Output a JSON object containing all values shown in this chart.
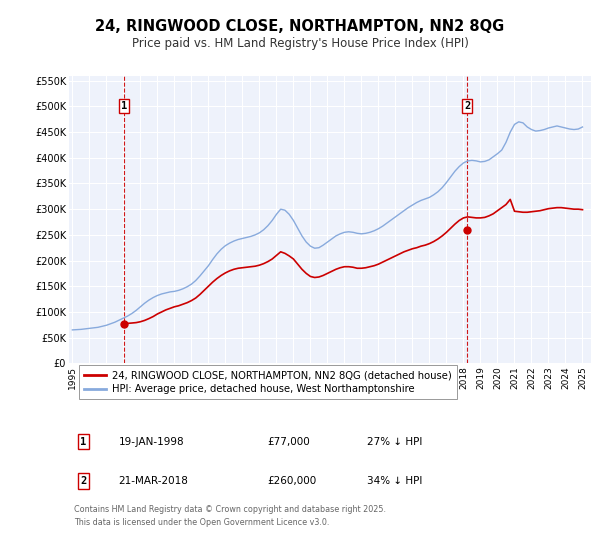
{
  "title": "24, RINGWOOD CLOSE, NORTHAMPTON, NN2 8QG",
  "subtitle": "Price paid vs. HM Land Registry's House Price Index (HPI)",
  "xlim": [
    1994.8,
    2025.5
  ],
  "ylim": [
    0,
    560000
  ],
  "yticks": [
    0,
    50000,
    100000,
    150000,
    200000,
    250000,
    300000,
    350000,
    400000,
    450000,
    500000,
    550000
  ],
  "ytick_labels": [
    "£0",
    "£50K",
    "£100K",
    "£150K",
    "£200K",
    "£250K",
    "£300K",
    "£350K",
    "£400K",
    "£450K",
    "£500K",
    "£550K"
  ],
  "xticks": [
    1995,
    1996,
    1997,
    1998,
    1999,
    2000,
    2001,
    2002,
    2003,
    2004,
    2005,
    2006,
    2007,
    2008,
    2009,
    2010,
    2011,
    2012,
    2013,
    2014,
    2015,
    2016,
    2017,
    2018,
    2019,
    2020,
    2021,
    2022,
    2023,
    2024,
    2025
  ],
  "legend_line1": "24, RINGWOOD CLOSE, NORTHAMPTON, NN2 8QG (detached house)",
  "legend_line2": "HPI: Average price, detached house, West Northamptonshire",
  "line1_color": "#cc0000",
  "line2_color": "#88aadd",
  "vline_color": "#cc0000",
  "sale1_x": 1998.05,
  "sale1_y": 77000,
  "sale2_x": 2018.21,
  "sale2_y": 260000,
  "table_row1": [
    "1",
    "19-JAN-1998",
    "£77,000",
    "27% ↓ HPI"
  ],
  "table_row2": [
    "2",
    "21-MAR-2018",
    "£260,000",
    "34% ↓ HPI"
  ],
  "footnote": "Contains HM Land Registry data © Crown copyright and database right 2025.\nThis data is licensed under the Open Government Licence v3.0.",
  "background_color": "#ffffff",
  "plot_bg_color": "#eef2fb",
  "grid_color": "#ffffff",
  "hpi_data_x": [
    1995.0,
    1995.25,
    1995.5,
    1995.75,
    1996.0,
    1996.25,
    1996.5,
    1996.75,
    1997.0,
    1997.25,
    1997.5,
    1997.75,
    1998.0,
    1998.25,
    1998.5,
    1998.75,
    1999.0,
    1999.25,
    1999.5,
    1999.75,
    2000.0,
    2000.25,
    2000.5,
    2000.75,
    2001.0,
    2001.25,
    2001.5,
    2001.75,
    2002.0,
    2002.25,
    2002.5,
    2002.75,
    2003.0,
    2003.25,
    2003.5,
    2003.75,
    2004.0,
    2004.25,
    2004.5,
    2004.75,
    2005.0,
    2005.25,
    2005.5,
    2005.75,
    2006.0,
    2006.25,
    2006.5,
    2006.75,
    2007.0,
    2007.25,
    2007.5,
    2007.75,
    2008.0,
    2008.25,
    2008.5,
    2008.75,
    2009.0,
    2009.25,
    2009.5,
    2009.75,
    2010.0,
    2010.25,
    2010.5,
    2010.75,
    2011.0,
    2011.25,
    2011.5,
    2011.75,
    2012.0,
    2012.25,
    2012.5,
    2012.75,
    2013.0,
    2013.25,
    2013.5,
    2013.75,
    2014.0,
    2014.25,
    2014.5,
    2014.75,
    2015.0,
    2015.25,
    2015.5,
    2015.75,
    2016.0,
    2016.25,
    2016.5,
    2016.75,
    2017.0,
    2017.25,
    2017.5,
    2017.75,
    2018.0,
    2018.25,
    2018.5,
    2018.75,
    2019.0,
    2019.25,
    2019.5,
    2019.75,
    2020.0,
    2020.25,
    2020.5,
    2020.75,
    2021.0,
    2021.25,
    2021.5,
    2021.75,
    2022.0,
    2022.25,
    2022.5,
    2022.75,
    2023.0,
    2023.25,
    2023.5,
    2023.75,
    2024.0,
    2024.25,
    2024.5,
    2024.75,
    2025.0
  ],
  "hpi_data_y": [
    65000,
    65500,
    66000,
    67000,
    68000,
    69000,
    70000,
    72000,
    74000,
    77000,
    80000,
    84000,
    88000,
    92000,
    97000,
    103000,
    110000,
    117000,
    123000,
    128000,
    132000,
    135000,
    137000,
    139000,
    140000,
    142000,
    145000,
    149000,
    154000,
    161000,
    170000,
    180000,
    190000,
    202000,
    213000,
    222000,
    229000,
    234000,
    238000,
    241000,
    243000,
    245000,
    247000,
    250000,
    254000,
    260000,
    268000,
    278000,
    290000,
    300000,
    298000,
    290000,
    278000,
    263000,
    248000,
    236000,
    228000,
    224000,
    225000,
    230000,
    236000,
    242000,
    248000,
    252000,
    255000,
    256000,
    255000,
    253000,
    252000,
    253000,
    255000,
    258000,
    262000,
    267000,
    273000,
    279000,
    285000,
    291000,
    297000,
    303000,
    308000,
    313000,
    317000,
    320000,
    323000,
    328000,
    334000,
    342000,
    352000,
    363000,
    374000,
    383000,
    390000,
    394000,
    395000,
    394000,
    392000,
    393000,
    396000,
    402000,
    408000,
    415000,
    430000,
    450000,
    465000,
    470000,
    468000,
    460000,
    455000,
    452000,
    453000,
    455000,
    458000,
    460000,
    462000,
    460000,
    458000,
    456000,
    455000,
    456000,
    460000
  ],
  "price_data_x": [
    1995.0,
    1995.25,
    1995.5,
    1995.75,
    1996.0,
    1996.25,
    1996.5,
    1996.75,
    1997.0,
    1997.25,
    1997.5,
    1997.75,
    1998.0,
    1998.25,
    1998.5,
    1998.75,
    1999.0,
    1999.25,
    1999.5,
    1999.75,
    2000.0,
    2000.25,
    2000.5,
    2000.75,
    2001.0,
    2001.25,
    2001.5,
    2001.75,
    2002.0,
    2002.25,
    2002.5,
    2002.75,
    2003.0,
    2003.25,
    2003.5,
    2003.75,
    2004.0,
    2004.25,
    2004.5,
    2004.75,
    2005.0,
    2005.25,
    2005.5,
    2005.75,
    2006.0,
    2006.25,
    2006.5,
    2006.75,
    2007.0,
    2007.25,
    2007.5,
    2007.75,
    2008.0,
    2008.25,
    2008.5,
    2008.75,
    2009.0,
    2009.25,
    2009.5,
    2009.75,
    2010.0,
    2010.25,
    2010.5,
    2010.75,
    2011.0,
    2011.25,
    2011.5,
    2011.75,
    2012.0,
    2012.25,
    2012.5,
    2012.75,
    2013.0,
    2013.25,
    2013.5,
    2013.75,
    2014.0,
    2014.25,
    2014.5,
    2014.75,
    2015.0,
    2015.25,
    2015.5,
    2015.75,
    2016.0,
    2016.25,
    2016.5,
    2016.75,
    2017.0,
    2017.25,
    2017.5,
    2017.75,
    2018.0,
    2018.25,
    2018.5,
    2018.75,
    2019.0,
    2019.25,
    2019.5,
    2019.75,
    2020.0,
    2020.25,
    2020.5,
    2020.75,
    2021.0,
    2021.25,
    2021.5,
    2021.75,
    2022.0,
    2022.25,
    2022.5,
    2022.75,
    2023.0,
    2023.25,
    2023.5,
    2023.75,
    2024.0,
    2024.25,
    2024.5,
    2024.75,
    2025.0
  ],
  "price_data_y": [
    null,
    null,
    null,
    null,
    null,
    null,
    null,
    null,
    null,
    null,
    null,
    null,
    77000,
    77700,
    78400,
    79200,
    80900,
    83500,
    87000,
    91000,
    96000,
    100000,
    104000,
    107000,
    110000,
    112000,
    115000,
    118000,
    122000,
    127000,
    134000,
    142000,
    150000,
    158000,
    165000,
    171000,
    176000,
    180000,
    183000,
    185000,
    186000,
    187000,
    188000,
    189000,
    191000,
    194000,
    198000,
    203000,
    210000,
    217000,
    214000,
    209000,
    203000,
    193000,
    183000,
    175000,
    169000,
    167000,
    168000,
    171000,
    175000,
    179000,
    183000,
    186000,
    188000,
    188000,
    187000,
    185000,
    185000,
    186000,
    188000,
    190000,
    193000,
    197000,
    201000,
    205000,
    209000,
    213000,
    217000,
    220000,
    223000,
    225000,
    228000,
    230000,
    233000,
    237000,
    242000,
    248000,
    255000,
    263000,
    271000,
    278000,
    283000,
    285000,
    284000,
    283000,
    283000,
    284000,
    287000,
    291000,
    297000,
    303000,
    309000,
    319000,
    296000,
    295000,
    294000,
    294000,
    295000,
    296000,
    297000,
    299000,
    301000,
    302000,
    303000,
    303000,
    302000,
    301000,
    300000,
    300000,
    299000,
    298000,
    298000
  ]
}
